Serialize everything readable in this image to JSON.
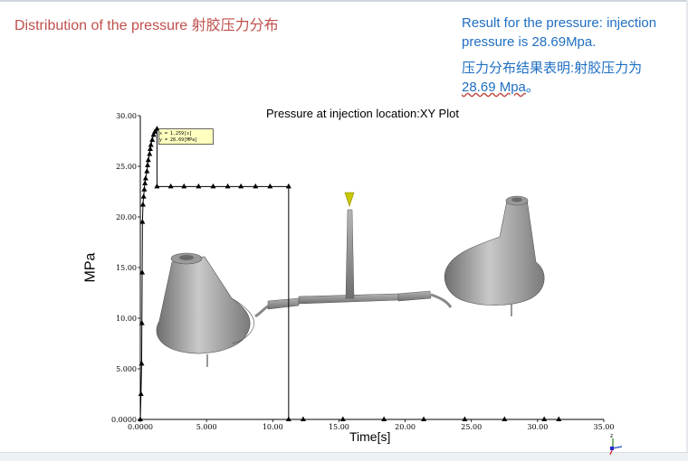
{
  "slide": {
    "title": "Distribution of the pressure   射胶压力分布",
    "result_en": "Result for the pressure: injection pressure is 28.69Mpa.",
    "result_cn_line1": "压力分布结果表明:射胶压力为",
    "result_cn_value": "28.69 Mpa",
    "result_cn_end": "。"
  },
  "chart_data": {
    "type": "line",
    "title": "Pressure at injection location:XY Plot",
    "xlabel": "Time[s]",
    "ylabel": "MPa",
    "xlim": [
      0,
      35
    ],
    "ylim": [
      0,
      30
    ],
    "x_ticks": [
      "0.0000",
      "5.000",
      "10.00",
      "15.00",
      "20.00",
      "25.00",
      "30.00",
      "35.00"
    ],
    "y_ticks": [
      "0.0000",
      "5.000",
      "10.00",
      "15.00",
      "20.00",
      "25.00",
      "30.00"
    ],
    "series": [
      {
        "points": [
          [
            0.0,
            0.0
          ],
          [
            0.05,
            2.5
          ],
          [
            0.1,
            5.5
          ],
          [
            0.12,
            9.5
          ],
          [
            0.14,
            14.5
          ],
          [
            0.16,
            19.5
          ],
          [
            0.2,
            21.2
          ],
          [
            0.25,
            22.0
          ],
          [
            0.3,
            22.7
          ],
          [
            0.35,
            23.3
          ],
          [
            0.4,
            23.8
          ],
          [
            0.5,
            24.5
          ],
          [
            0.55,
            25.1
          ],
          [
            0.6,
            25.6
          ],
          [
            0.7,
            26.2
          ],
          [
            0.75,
            26.7
          ],
          [
            0.8,
            27.1
          ],
          [
            0.9,
            27.6
          ],
          [
            1.0,
            28.1
          ],
          [
            1.1,
            28.4
          ],
          [
            1.259,
            28.69
          ],
          [
            1.259,
            23.0
          ],
          [
            2.3,
            23.0
          ],
          [
            3.3,
            23.0
          ],
          [
            4.4,
            23.0
          ],
          [
            5.5,
            23.0
          ],
          [
            6.6,
            23.0
          ],
          [
            7.6,
            23.0
          ],
          [
            8.7,
            23.0
          ],
          [
            9.8,
            23.0
          ],
          [
            11.2,
            23.0
          ],
          [
            11.2,
            0.0
          ],
          [
            12.3,
            0.0
          ],
          [
            15.3,
            0.0
          ],
          [
            18.4,
            0.0
          ],
          [
            21.4,
            0.0
          ],
          [
            24.5,
            0.0
          ],
          [
            27.5,
            0.0
          ],
          [
            30.5,
            0.0
          ],
          [
            31.6,
            0.0
          ]
        ]
      }
    ],
    "annotation": {
      "x_label": "x = 1.259[s]",
      "y_label": "y = 28.69[MPa]",
      "x": 1.259,
      "y": 28.69
    },
    "grid": false,
    "colors": {
      "line": "#000000",
      "marker": "#000000",
      "tooltip_bg": "#ffffc0",
      "model": "#8e8e8e",
      "gate_tip": "#c8c800"
    }
  }
}
